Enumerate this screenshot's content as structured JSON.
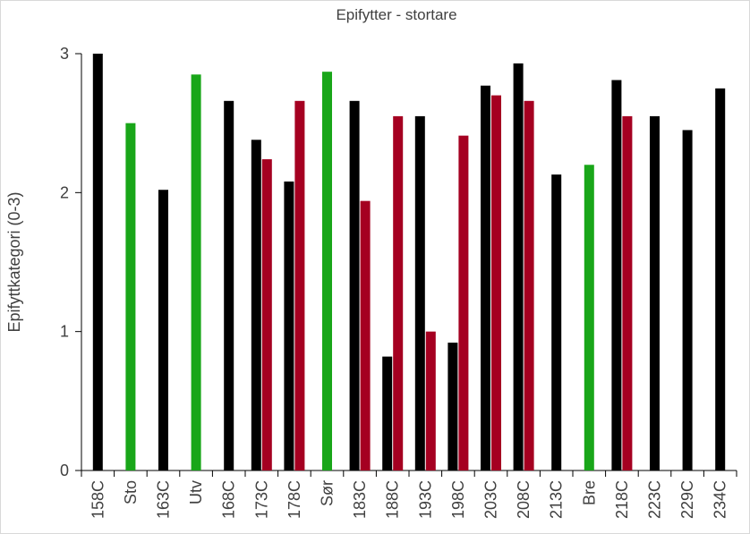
{
  "chart_data": {
    "type": "bar",
    "title": "Epifytter - stortare",
    "xlabel": "",
    "ylabel": "Epifyttkategori  (0-3)",
    "ylim": [
      0,
      3
    ],
    "yticks": [
      0,
      1,
      2,
      3
    ],
    "grid": false,
    "legend": "none",
    "categories": [
      "158C",
      "Sto",
      "163C",
      "Utv",
      "168C",
      "173C",
      "178C",
      "Sør",
      "183C",
      "188C",
      "193C",
      "198C",
      "203C",
      "208C",
      "213C",
      "Bre",
      "218C",
      "223C",
      "229C",
      "234C"
    ],
    "series": [
      {
        "values": [
          3.0,
          null,
          2.02,
          null,
          2.66,
          2.38,
          2.08,
          null,
          2.66,
          0.82,
          2.55,
          0.92,
          2.77,
          2.93,
          2.13,
          null,
          2.81,
          2.55,
          2.45,
          2.75
        ],
        "color": "#000000"
      },
      {
        "values": [
          null,
          null,
          null,
          null,
          null,
          2.24,
          2.66,
          null,
          1.94,
          2.55,
          1.0,
          2.41,
          2.7,
          2.66,
          null,
          null,
          2.55,
          null,
          null,
          null
        ],
        "color": "#a50021"
      },
      {
        "values": [
          null,
          2.5,
          null,
          2.85,
          null,
          null,
          null,
          2.87,
          null,
          null,
          null,
          null,
          null,
          null,
          null,
          2.2,
          null,
          null,
          null,
          null
        ],
        "color": "#19a619"
      }
    ]
  }
}
